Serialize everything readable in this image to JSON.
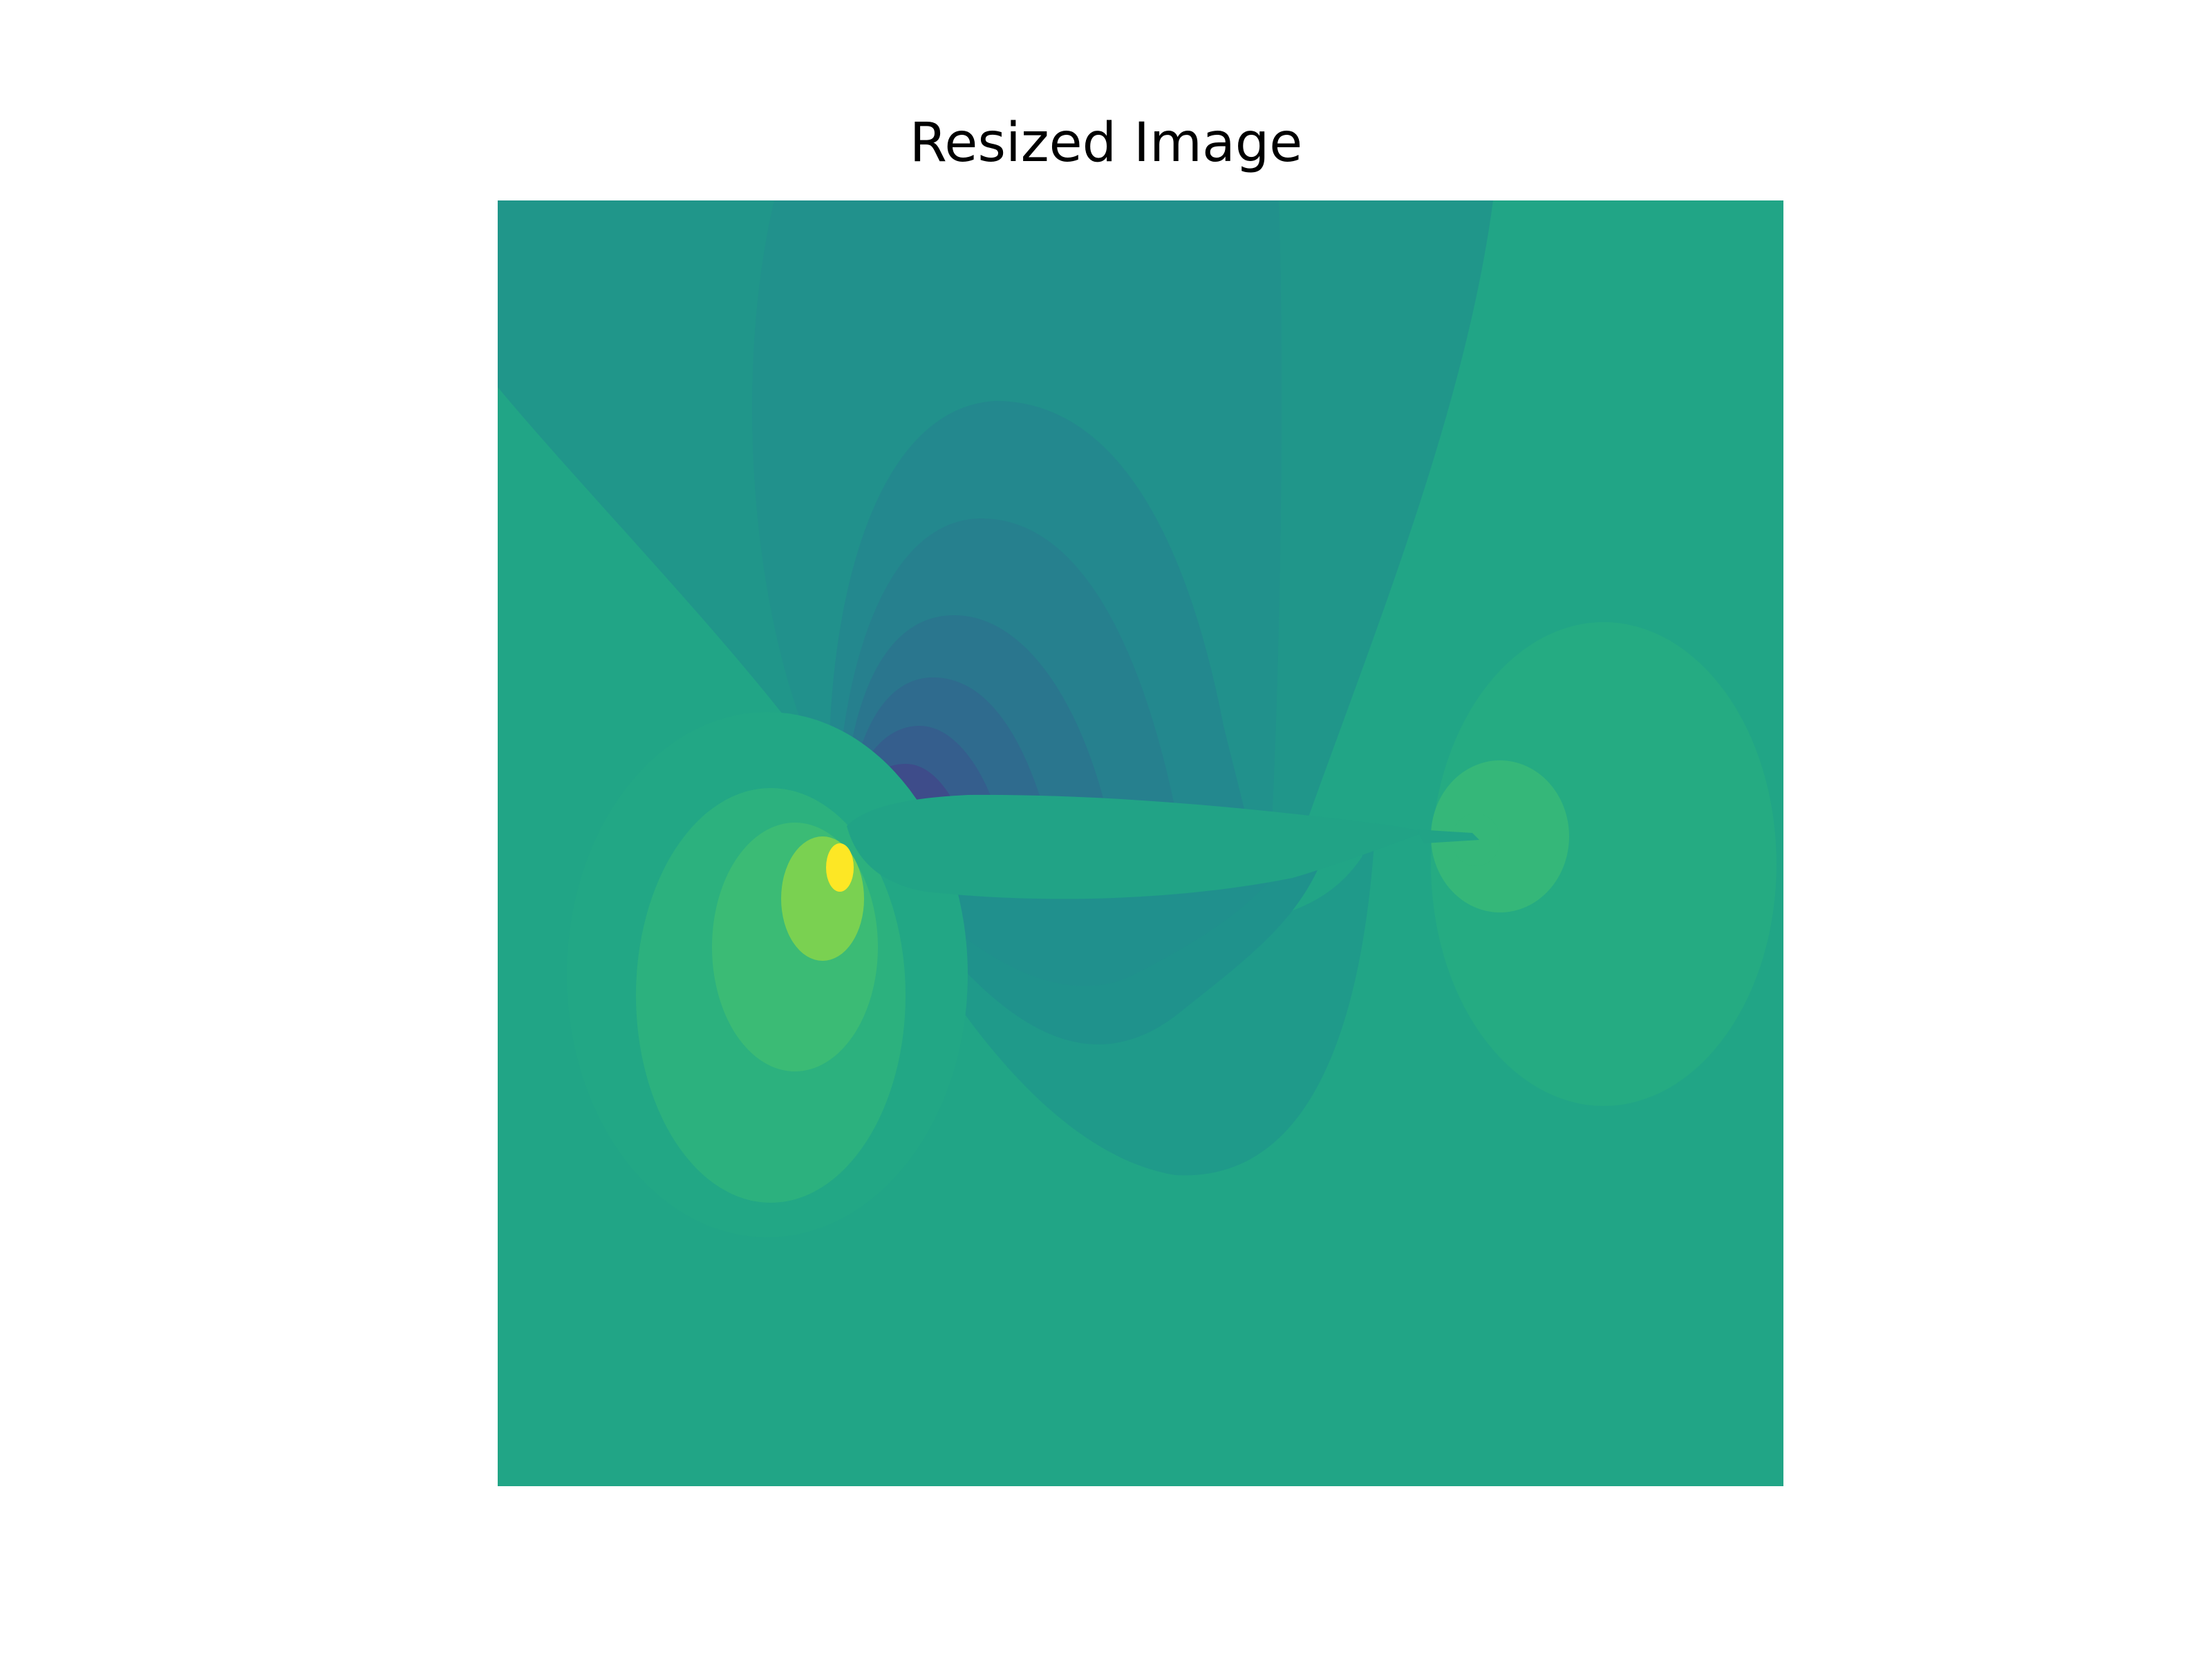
{
  "figure": {
    "title": "Resized Image"
  },
  "image": {
    "description_tag": "pressure-field-around-airfoil",
    "colormap": "viridis",
    "colors": {
      "background_field": "#21a586",
      "outer_left_lobe": "#22a785",
      "upper_outer_band": "#20968a",
      "upper_band_2": "#21918c",
      "upper_band_3": "#23888e",
      "upper_band_4": "#26808e",
      "upper_band_5": "#2a768e",
      "upper_band_6": "#2f6b8e",
      "upper_band_7": "#355e8d",
      "upper_band_8": "#3e4c8a",
      "suction_peak": "#440154",
      "lower_band_1": "#1f9a8a",
      "lower_band_2": "#1f928c",
      "lower_band_3": "#20908d",
      "stagnation_outer": "#2cb17e",
      "stagnation_mid": "#3bbb75",
      "stagnation_inner": "#7ad151",
      "stagnation_peak": "#fde725",
      "wake_outer": "#25ab82",
      "wake_inner": "#35b779",
      "airfoil_body": "#21a386"
    }
  }
}
